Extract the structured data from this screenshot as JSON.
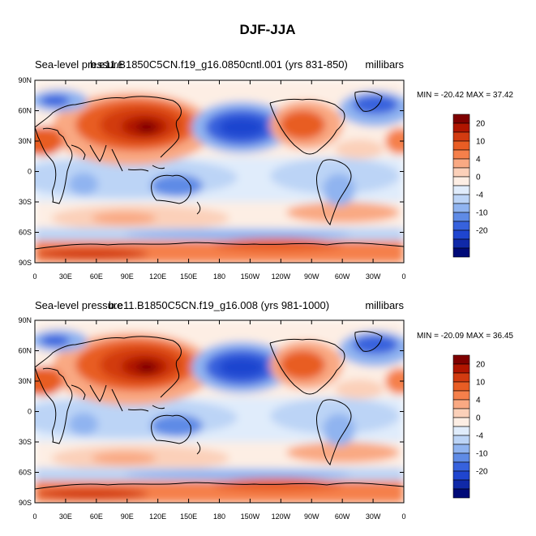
{
  "figure": {
    "title": "DJF-JJA",
    "panels": [
      {
        "left_text": "Sea-level pressure",
        "center_text": "b.e11.B1850C5CN.f19_g16.0850cntl.001 (yrs 831-850)",
        "right_text": "millibars",
        "minmax": "MIN = -20.42 MAX =  37.42"
      },
      {
        "left_text": "Sea-level pressure",
        "center_text": "b.e11.B1850C5CN.f19_g16.008 (yrs 981-1000)",
        "right_text": "millibars",
        "minmax": "MIN = -20.09 MAX =  36.45"
      }
    ],
    "lat_labels": [
      "90N",
      "60N",
      "30N",
      "0",
      "30S",
      "60S",
      "90S"
    ],
    "lon_labels": [
      "0",
      "30E",
      "60E",
      "90E",
      "120E",
      "150E",
      "180",
      "150W",
      "120W",
      "90W",
      "60W",
      "30W",
      "0"
    ],
    "colorbar": {
      "labels": [
        "20",
        "10",
        "4",
        "0",
        "-4",
        "-10",
        "-20"
      ],
      "colors": [
        "#7f0000",
        "#b01500",
        "#d23b10",
        "#e85d24",
        "#f5804b",
        "#f9a983",
        "#fbd0b9",
        "#fdeee4",
        "#e0ecfb",
        "#bcd4f6",
        "#90b4f0",
        "#5f8be6",
        "#3762dd",
        "#1f45cf",
        "#1029a8",
        "#000a78"
      ]
    }
  }
}
